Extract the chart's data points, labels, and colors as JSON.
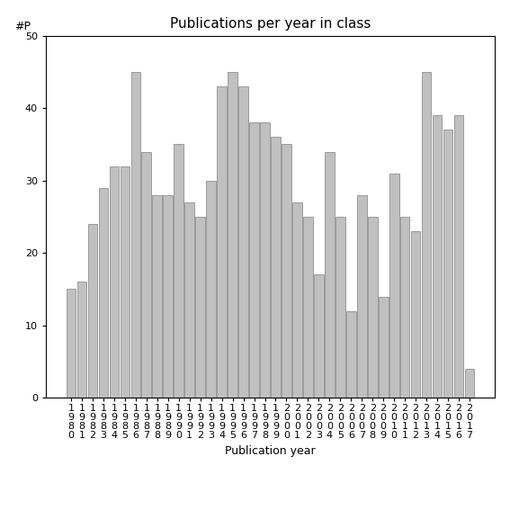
{
  "title": "Publications per year in class",
  "ylabel": "#P",
  "xlabel": "Publication year",
  "ylim": [
    0,
    50
  ],
  "yticks": [
    0,
    10,
    20,
    30,
    40,
    50
  ],
  "years": [
    1980,
    1981,
    1982,
    1983,
    1984,
    1985,
    1986,
    1987,
    1988,
    1989,
    1990,
    1991,
    1992,
    1993,
    1994,
    1995,
    1996,
    1997,
    1998,
    1999,
    2000,
    2001,
    2002,
    2003,
    2004,
    2005,
    2006,
    2007,
    2008,
    2009,
    2010,
    2011,
    2012,
    2013,
    2014,
    2015,
    2016,
    2017
  ],
  "values": [
    15,
    16,
    24,
    29,
    32,
    32,
    45,
    34,
    28,
    28,
    35,
    27,
    25,
    30,
    43,
    45,
    43,
    38,
    38,
    36,
    35,
    27,
    25,
    17,
    34,
    25,
    12,
    28,
    25,
    14,
    31,
    25,
    23,
    45,
    39,
    37,
    39,
    4
  ],
  "bar_color": "#c0c0c0",
  "bar_edgecolor": "#808080",
  "background_color": "#ffffff",
  "title_fontsize": 11,
  "axis_label_fontsize": 9,
  "tick_fontsize": 8
}
